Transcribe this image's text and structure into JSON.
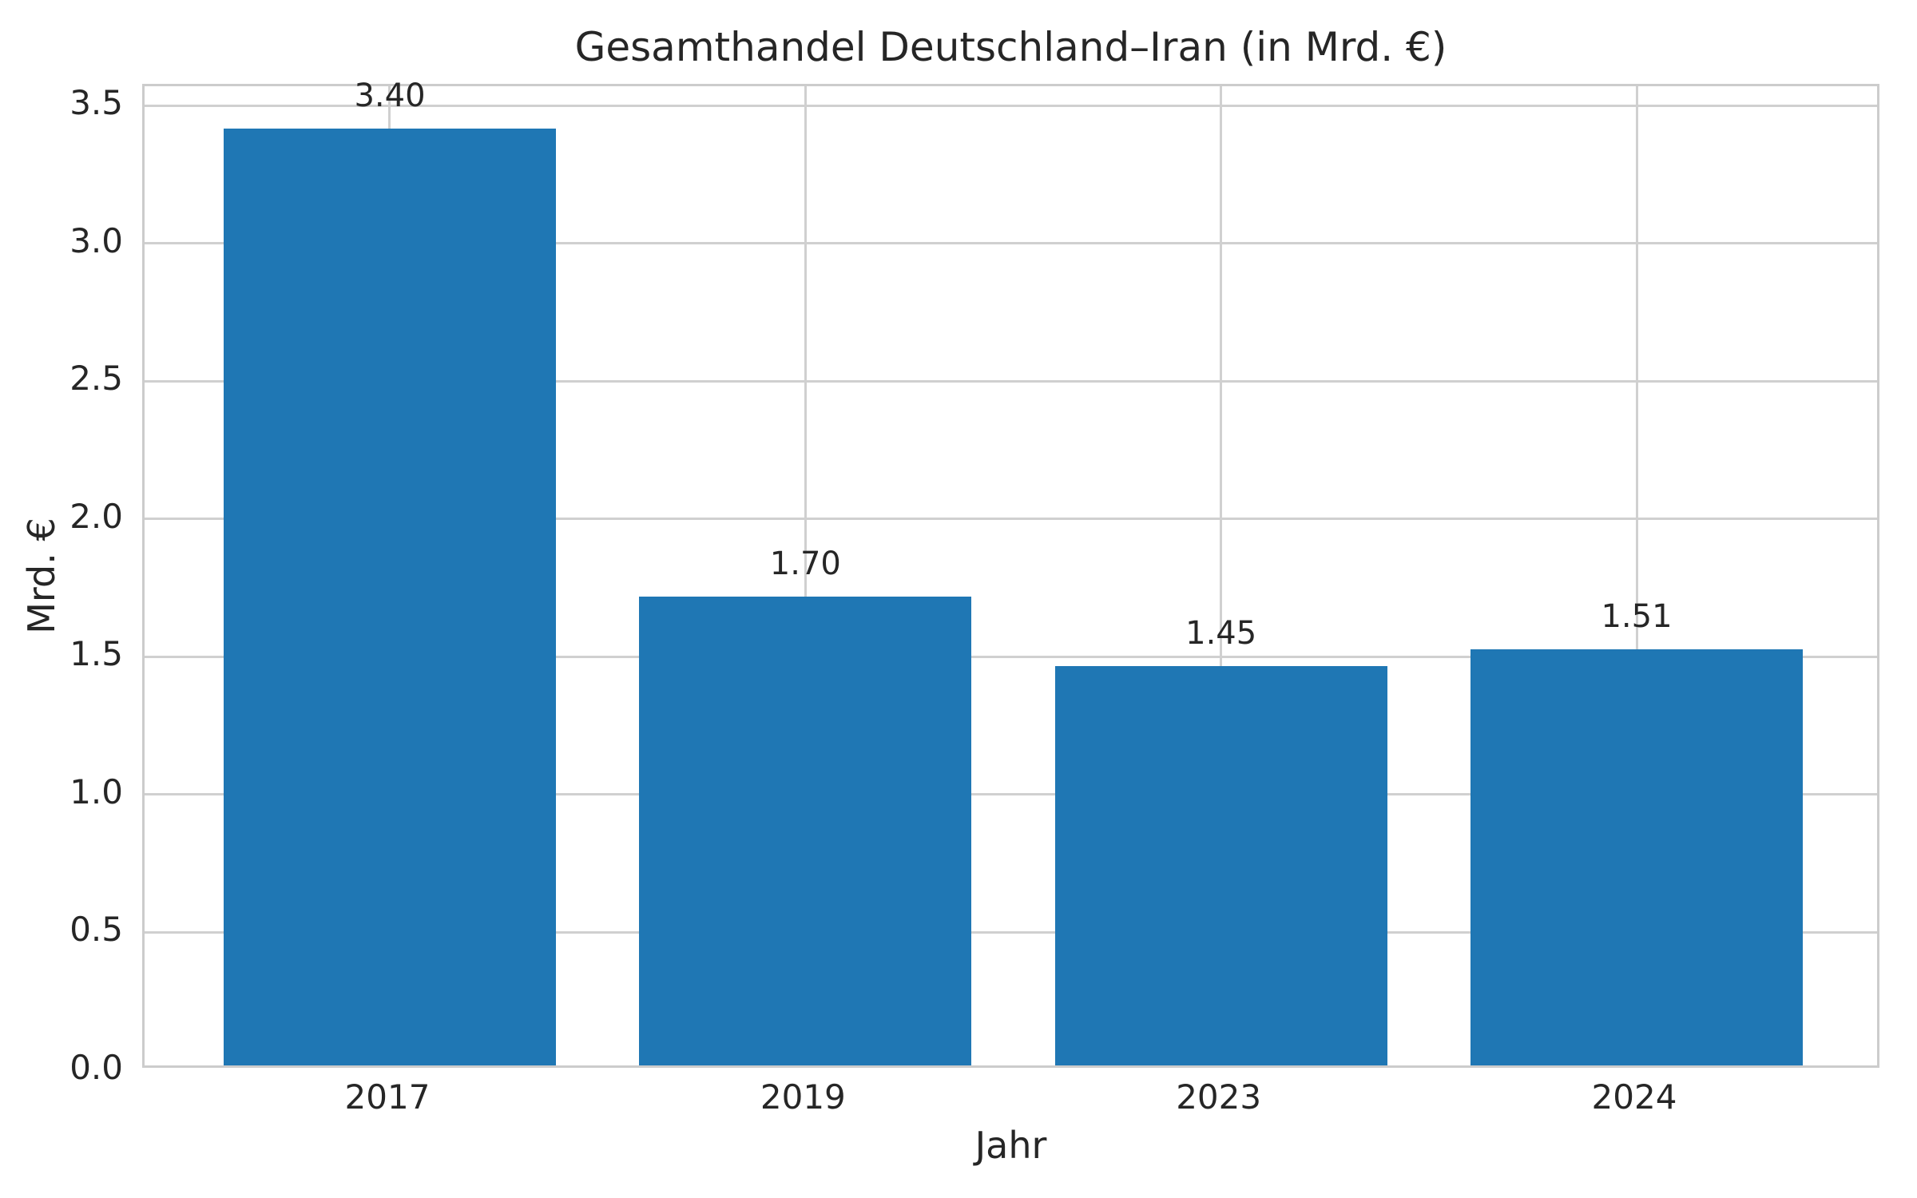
{
  "chart_data": {
    "type": "bar",
    "title": "Gesamthandel Deutschland–Iran (in Mrd. €)",
    "xlabel": "Jahr",
    "ylabel": "Mrd. €",
    "categories": [
      "2017",
      "2019",
      "2023",
      "2024"
    ],
    "values": [
      3.4,
      1.7,
      1.45,
      1.51
    ],
    "value_labels": [
      "3.40",
      "1.70",
      "1.45",
      "1.51"
    ],
    "yticks": [
      0.0,
      0.5,
      1.0,
      1.5,
      2.0,
      2.5,
      3.0,
      3.5
    ],
    "ytick_labels": [
      "0.0",
      "0.5",
      "1.0",
      "1.5",
      "2.0",
      "2.5",
      "3.0",
      "3.5"
    ],
    "ylim": [
      0,
      3.57
    ],
    "grid": true,
    "legend": false,
    "bar_color": "#1f77b4",
    "grid_color": "#d0d0d0",
    "axes_edge_color": "#cccccc",
    "text_color": "#262626"
  }
}
